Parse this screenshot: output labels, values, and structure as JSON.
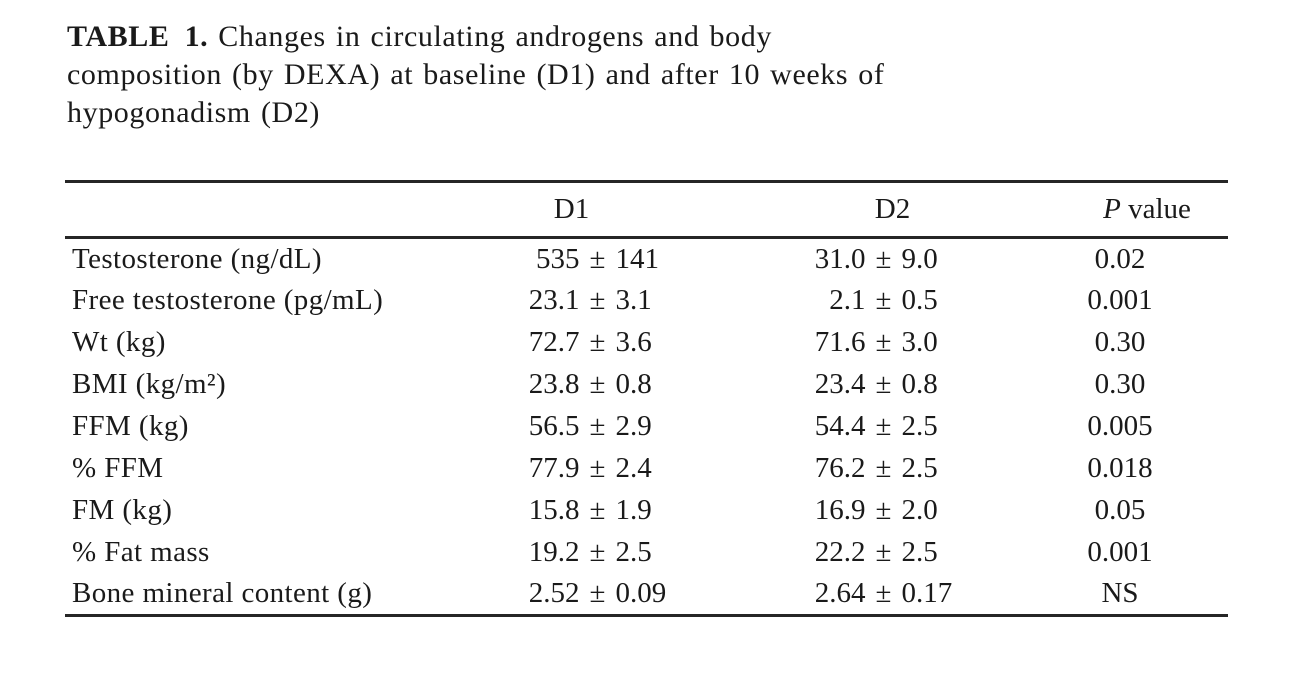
{
  "colors": {
    "background": "#ffffff",
    "text": "#1a1a1a",
    "rule": "#262626"
  },
  "caption": {
    "label": "TABLE 1.",
    "line1_rest": "Changes in circulating androgens and body",
    "line2": "composition (by DEXA) at baseline (D1) and after 10 weeks of",
    "line3": "hypogonadism (D2)"
  },
  "table": {
    "pm": "±",
    "columns": {
      "d1": "D1",
      "d2": "D2",
      "p_italic": "P",
      "p_rest": "value"
    },
    "rows": [
      {
        "label": "Testosterone (ng/dL)",
        "d1v": "535",
        "d1e": "141",
        "d2v": "31.0",
        "d2e": "9.0",
        "p": "0.02"
      },
      {
        "label": "Free testosterone (pg/mL)",
        "d1v": "23.1",
        "d1e": "3.1",
        "d2v": "2.1",
        "d2e": "0.5",
        "p": "0.001"
      },
      {
        "label": "Wt (kg)",
        "d1v": "72.7",
        "d1e": "3.6",
        "d2v": "71.6",
        "d2e": "3.0",
        "p": "0.30"
      },
      {
        "label": "BMI (kg/m²)",
        "d1v": "23.8",
        "d1e": "0.8",
        "d2v": "23.4",
        "d2e": "0.8",
        "p": "0.30"
      },
      {
        "label": "FFM (kg)",
        "d1v": "56.5",
        "d1e": "2.9",
        "d2v": "54.4",
        "d2e": "2.5",
        "p": "0.005"
      },
      {
        "label": "% FFM",
        "d1v": "77.9",
        "d1e": "2.4",
        "d2v": "76.2",
        "d2e": "2.5",
        "p": "0.018"
      },
      {
        "label": "FM (kg)",
        "d1v": "15.8",
        "d1e": "1.9",
        "d2v": "16.9",
        "d2e": "2.0",
        "p": "0.05"
      },
      {
        "label": "% Fat mass",
        "d1v": "19.2",
        "d1e": "2.5",
        "d2v": "22.2",
        "d2e": "2.5",
        "p": "0.001"
      },
      {
        "label": "Bone mineral content (g)",
        "d1v": "2.52",
        "d1e": "0.09",
        "d2v": "2.64",
        "d2e": "0.17",
        "p": "NS"
      }
    ]
  }
}
